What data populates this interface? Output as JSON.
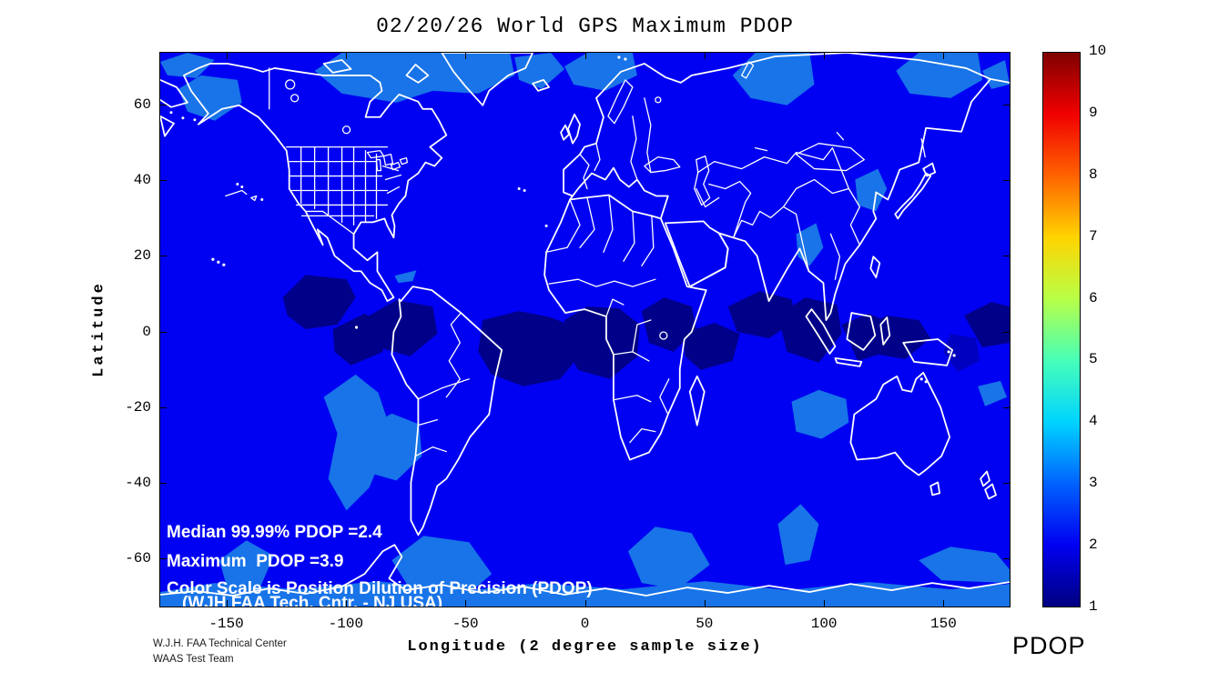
{
  "credits": {
    "line1": "W.J.H. FAA Technical Center",
    "line2": "WAAS Test Team"
  },
  "colors": {
    "pdop_background_blue": "#0000F2",
    "pdop_low_navy": "#000089",
    "pdop_mid_blue": "#0000C0",
    "pdop_elevated_blue": "#1874E8",
    "coastline": "#FFFFFF",
    "frame": "#000000"
  },
  "chart_data": {
    "type": "heatmap",
    "title": "02/20/26 World GPS Maximum PDOP",
    "projection": "equirectangular world map, white coastlines and country/state borders over PDOP color fill",
    "axes": {
      "x_label": "Longitude (2 degree sample size)",
      "y_label": "Latitude",
      "x_ticks": [
        -150,
        -100,
        -50,
        0,
        50,
        100,
        150
      ],
      "y_ticks": [
        60,
        40,
        20,
        0,
        -20,
        -40,
        -60
      ],
      "x_range": [
        -178,
        178
      ],
      "y_range": [
        -73,
        74
      ],
      "grid": false
    },
    "colorbar": {
      "label": "PDOP",
      "min": 1,
      "max": 10,
      "ticks": [
        10,
        9,
        8,
        7,
        6,
        5,
        4,
        3,
        2,
        1
      ],
      "colormap": "jet",
      "jet_stops_bottom_to_top": [
        "#000080",
        "#0000F1",
        "#0063FF",
        "#00D4FF",
        "#47FFB8",
        "#B8FF47",
        "#FFD400",
        "#FF6300",
        "#F10000",
        "#800000"
      ]
    },
    "annotations": {
      "median": "Median 99.99% PDOP =2.4",
      "maximum": "Maximum  PDOP =3.9",
      "scale_note": "Color Scale is Position Dilution of Precision (PDOP)",
      "org_note": "(WJH FAA Tech. Cntr. - NJ USA)"
    },
    "stats": {
      "median_99_99_pdop": 2.4,
      "maximum_pdop": 3.9
    },
    "value_bands": [
      {
        "pdop": "1.0-1.5",
        "color": "#000089",
        "coverage": "dark navy patches along the equatorial belt: eastern Pacific, Colombia/Amazon, equatorial Atlantic, central and east Africa, Indian Ocean, Indonesia, western Pacific, far-east Pacific edge"
      },
      {
        "pdop": "2.0-2.5",
        "color": "#0000F2",
        "coverage": "bright blue background over most of the globe"
      },
      {
        "pdop": "2.5-3.0",
        "color": "#1874E8",
        "coverage": "lighter blue patches: Arctic band along top edge, Antarctic band along bottom edge, south-east Pacific, southern Atlantic, southern Indian Ocean, Yellow Sea, Bay of Bengal, seas around 60S"
      }
    ]
  }
}
